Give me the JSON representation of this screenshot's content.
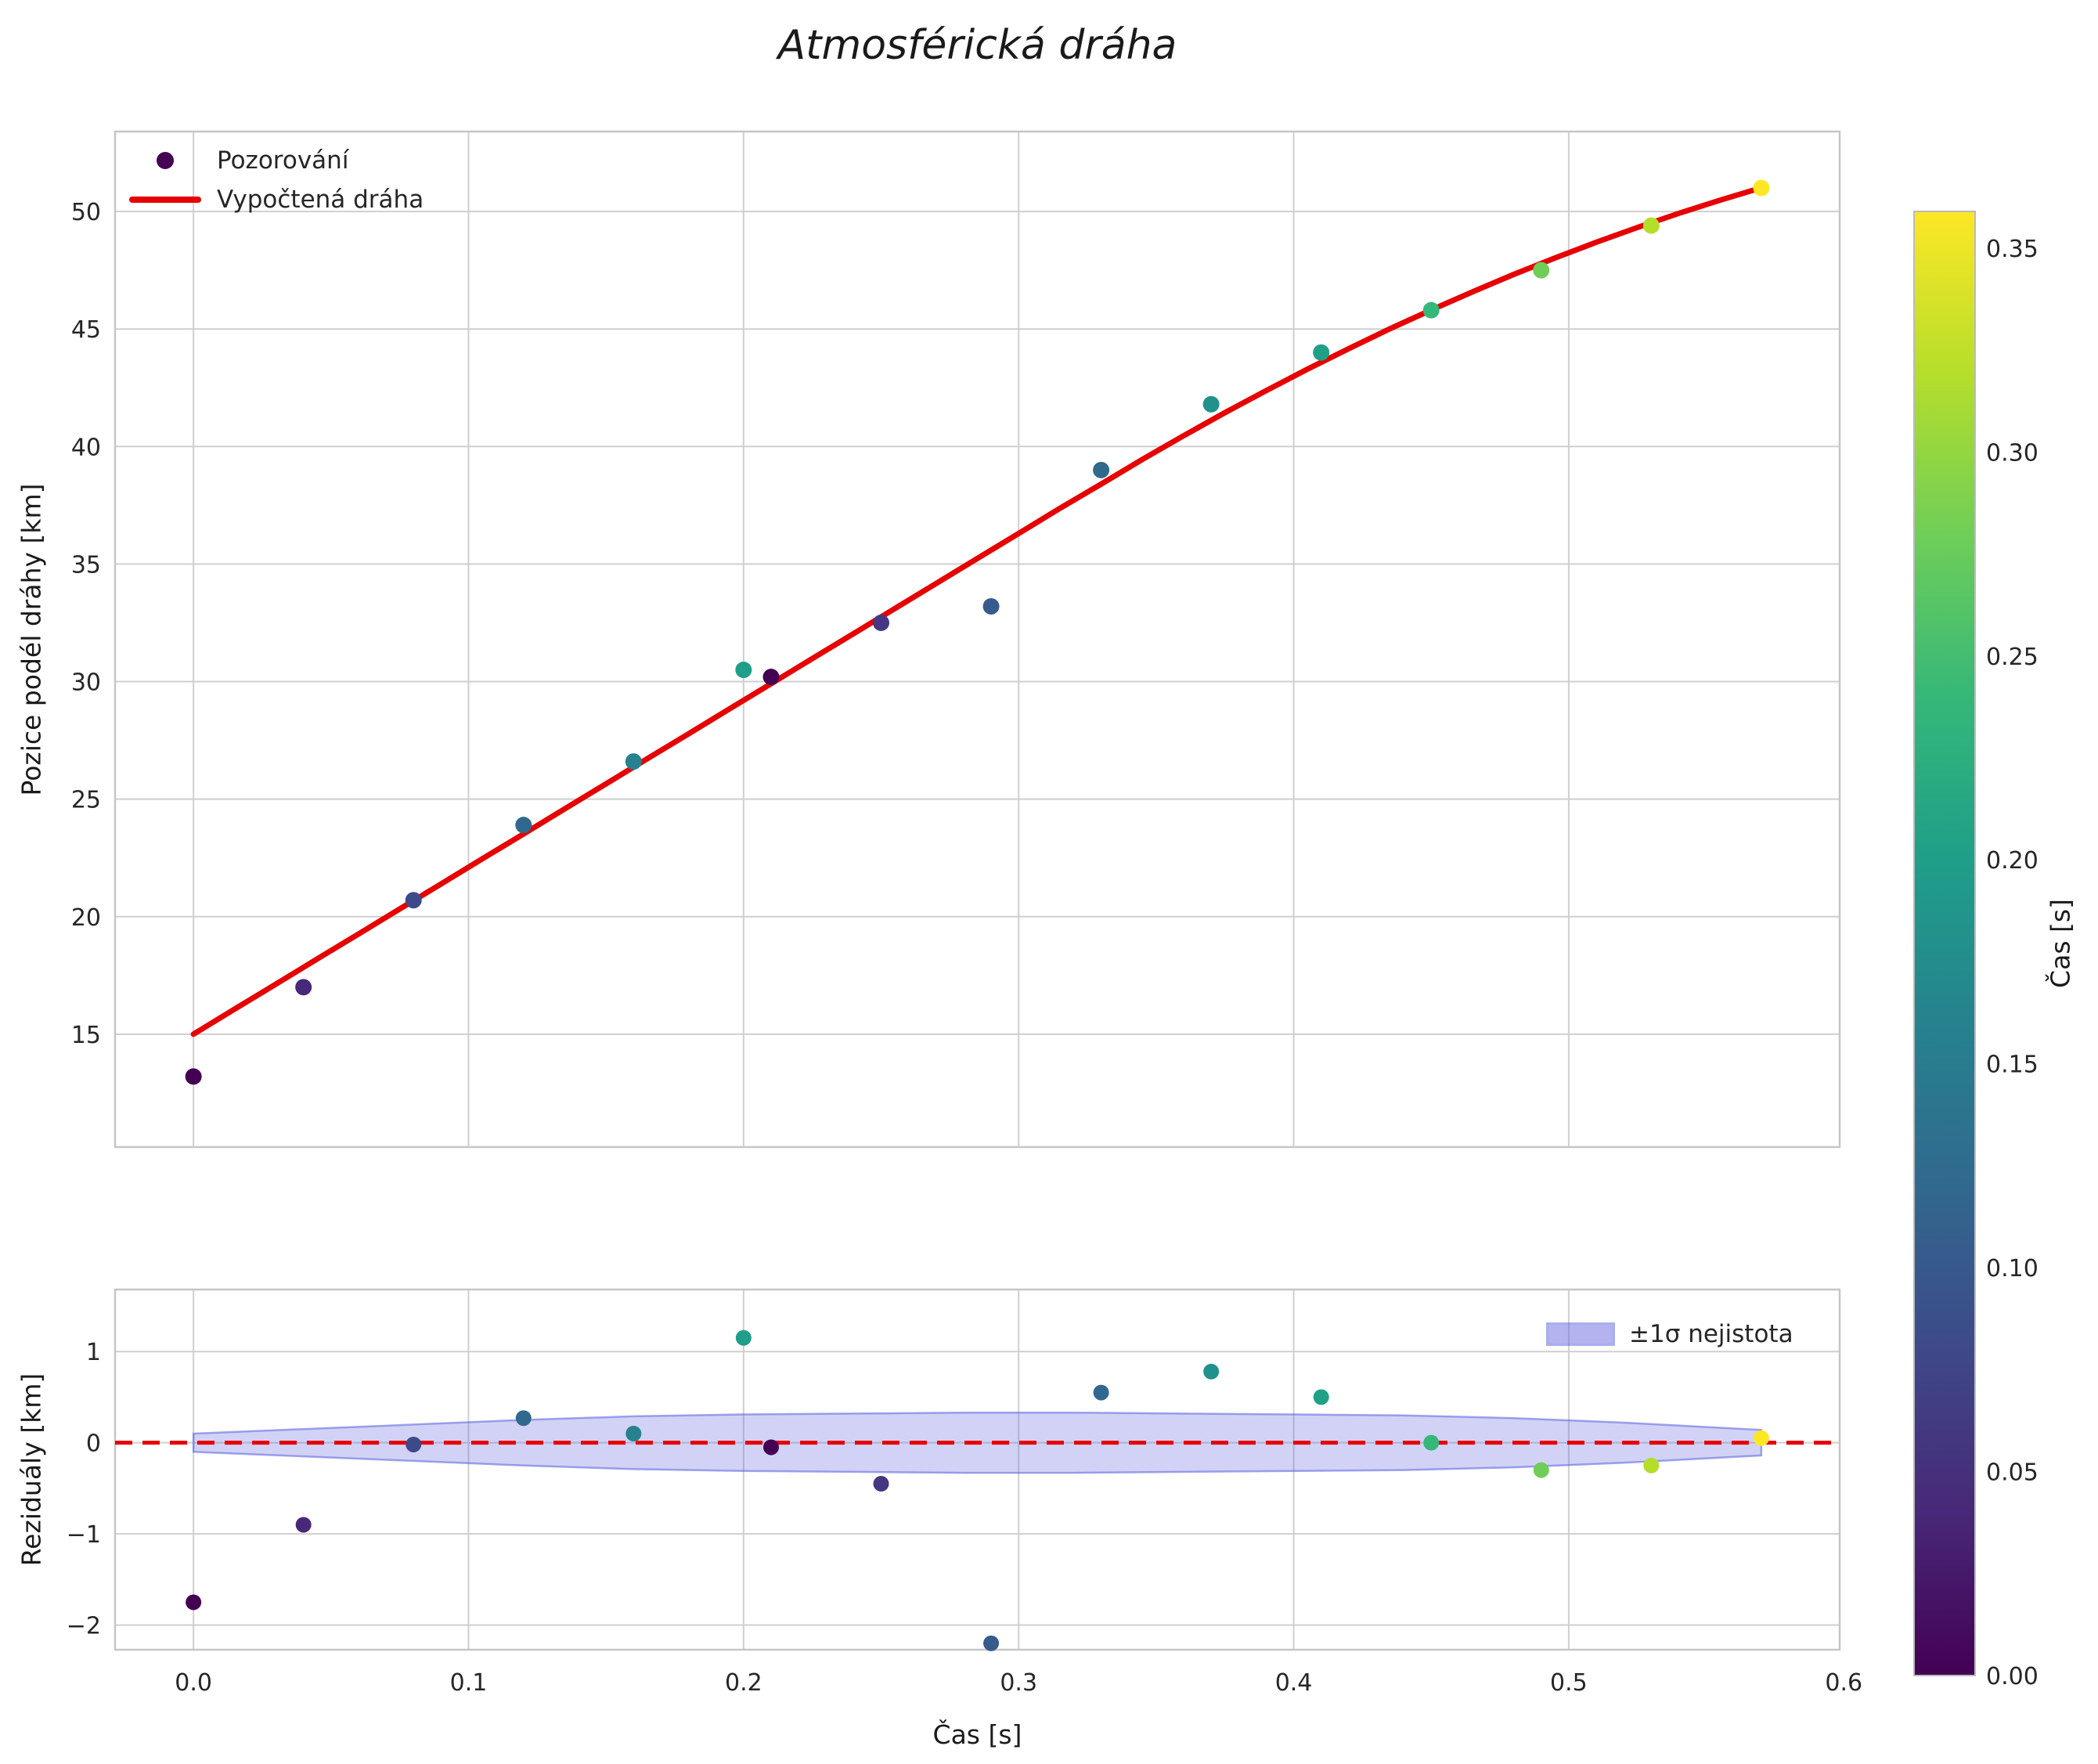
{
  "title": "Atmosférická dráha",
  "colorbar": {
    "label": "Čas [s]",
    "vmin": 0.0,
    "vmax": 0.359,
    "ticks": {
      "values": [
        0.0,
        0.05,
        0.1,
        0.15,
        0.2,
        0.25,
        0.3,
        0.35
      ],
      "labels": [
        "0.00",
        "0.05",
        "0.10",
        "0.15",
        "0.20",
        "0.25",
        "0.30",
        "0.35"
      ]
    },
    "colormap": "viridis",
    "gradient": [
      "#440154",
      "#482878",
      "#3e4989",
      "#31688e",
      "#26828e",
      "#1f9e89",
      "#35b779",
      "#6ece58",
      "#b5de2b",
      "#fde725"
    ]
  },
  "chart_data": [
    {
      "type": "scatter",
      "title": "Atmosférická dráha",
      "xlabel": "",
      "ylabel": "Pozice podél dráhy [km]",
      "xlim": [
        -0.0285,
        0.5985
      ],
      "ylim": [
        10.2,
        53.4
      ],
      "xticks": [
        0.0,
        0.1,
        0.2,
        0.3,
        0.4,
        0.5,
        0.6
      ],
      "xtick_labels_shown": false,
      "yticks": [
        15,
        20,
        25,
        30,
        35,
        40,
        45,
        50
      ],
      "ytick_labels": [
        "15",
        "20",
        "25",
        "30",
        "35",
        "40",
        "45",
        "50"
      ],
      "grid": true,
      "legend": [
        "Pozorování",
        "Vypočtená dráha"
      ],
      "legend_position": "upper left",
      "series": [
        {
          "name": "Pozorování",
          "type": "scatter",
          "x": [
            0.0,
            0.04,
            0.08,
            0.12,
            0.16,
            0.2,
            0.21,
            0.25,
            0.29,
            0.33,
            0.37,
            0.41,
            0.45,
            0.49,
            0.53,
            0.57
          ],
          "y": [
            13.2,
            17.0,
            20.7,
            23.9,
            26.6,
            30.5,
            30.2,
            32.5,
            33.2,
            39.0,
            41.8,
            44.0,
            45.8,
            47.5,
            49.4,
            51.0
          ],
          "point_colors": [
            "#440154",
            "#482878",
            "#3e4989",
            "#31688e",
            "#26828e",
            "#1f9e89",
            "#440154",
            "#453781",
            "#365c8d",
            "#31688e",
            "#21918c",
            "#1fa187",
            "#35b779",
            "#6ece58",
            "#b5de2b",
            "#fde725"
          ]
        },
        {
          "name": "Vypočtená dráha",
          "type": "line",
          "color": "#e60000",
          "x": [
            0.0,
            0.015,
            0.03,
            0.045,
            0.06,
            0.075,
            0.09,
            0.105,
            0.12,
            0.135,
            0.15,
            0.165,
            0.18,
            0.195,
            0.21,
            0.225,
            0.24,
            0.255,
            0.27,
            0.285,
            0.3,
            0.315,
            0.33,
            0.345,
            0.36,
            0.375,
            0.39,
            0.405,
            0.42,
            0.435,
            0.45,
            0.465,
            0.48,
            0.495,
            0.51,
            0.525,
            0.54,
            0.555,
            0.57
          ],
          "y": [
            15.0,
            16.07,
            17.13,
            18.2,
            19.26,
            20.33,
            21.39,
            22.46,
            23.52,
            24.59,
            25.65,
            26.72,
            27.78,
            28.85,
            29.91,
            30.98,
            32.04,
            33.11,
            34.17,
            35.24,
            36.3,
            37.37,
            38.4,
            39.45,
            40.46,
            41.44,
            42.38,
            43.29,
            44.16,
            45.01,
            45.81,
            46.58,
            47.32,
            48.02,
            48.69,
            49.32,
            49.92,
            50.48,
            51.01
          ]
        }
      ]
    },
    {
      "type": "scatter",
      "title": "",
      "xlabel": "Čas [s]",
      "ylabel": "Reziduály [km]",
      "xlim": [
        -0.0285,
        0.5985
      ],
      "ylim": [
        -2.27,
        1.68
      ],
      "xticks": [
        0.0,
        0.1,
        0.2,
        0.3,
        0.4,
        0.5,
        0.6
      ],
      "xtick_labels": [
        "0.0",
        "0.1",
        "0.2",
        "0.3",
        "0.4",
        "0.5",
        "0.6"
      ],
      "yticks": [
        -2,
        -1,
        0,
        1
      ],
      "ytick_labels": [
        "−2",
        "−1",
        "0",
        "1"
      ],
      "grid": true,
      "zero_line": {
        "y": 0,
        "style": "dashed",
        "color": "#e60000"
      },
      "band": {
        "label": "±1σ nejistota",
        "fill": "#6a6ae0",
        "fill_opacity": 0.3,
        "edge": "#5560dd",
        "x": [
          0.0,
          0.04,
          0.08,
          0.12,
          0.16,
          0.2,
          0.24,
          0.28,
          0.32,
          0.36,
          0.4,
          0.44,
          0.48,
          0.52,
          0.57
        ],
        "upper": [
          0.1,
          0.15,
          0.2,
          0.25,
          0.29,
          0.31,
          0.32,
          0.33,
          0.33,
          0.32,
          0.31,
          0.3,
          0.27,
          0.22,
          0.14
        ],
        "lower": [
          -0.1,
          -0.15,
          -0.2,
          -0.25,
          -0.29,
          -0.31,
          -0.32,
          -0.33,
          -0.33,
          -0.32,
          -0.31,
          -0.3,
          -0.27,
          -0.22,
          -0.14
        ]
      },
      "series": [
        {
          "name": "Reziduály",
          "type": "scatter",
          "x": [
            0.0,
            0.04,
            0.08,
            0.12,
            0.16,
            0.2,
            0.21,
            0.25,
            0.29,
            0.33,
            0.37,
            0.41,
            0.45,
            0.49,
            0.53,
            0.57
          ],
          "y": [
            -1.75,
            -0.9,
            -0.02,
            0.27,
            0.1,
            1.15,
            -0.05,
            -0.45,
            -2.2,
            0.55,
            0.78,
            0.5,
            0.0,
            -0.3,
            -0.25,
            0.05
          ],
          "point_colors": [
            "#440154",
            "#482878",
            "#3e4989",
            "#31688e",
            "#26828e",
            "#1f9e89",
            "#440154",
            "#453781",
            "#365c8d",
            "#31688e",
            "#21918c",
            "#1fa187",
            "#35b779",
            "#6ece58",
            "#b5de2b",
            "#fde725"
          ]
        }
      ]
    }
  ]
}
